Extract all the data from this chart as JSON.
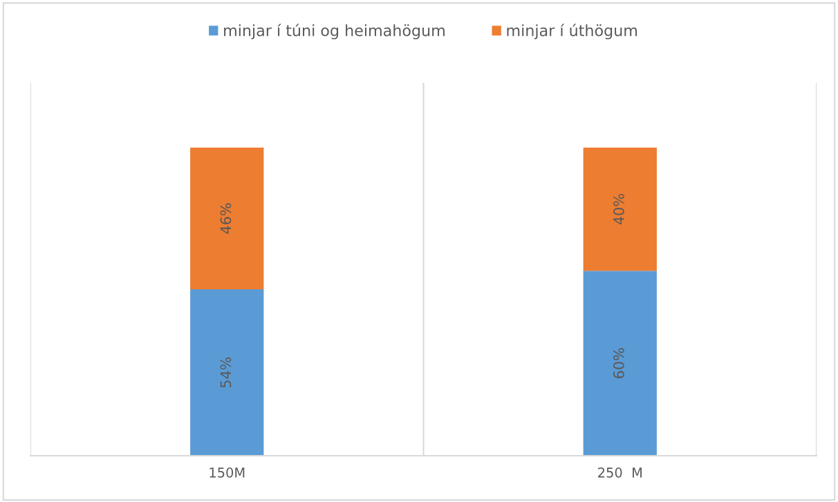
{
  "chart_data": {
    "type": "bar",
    "stacked": true,
    "categories": [
      "150M",
      "250  M"
    ],
    "series": [
      {
        "name": "minjar í túni og heimahögum",
        "color": "#5b9bd5",
        "values": [
          54,
          60
        ],
        "value_labels": [
          "54%",
          "60%"
        ]
      },
      {
        "name": "minjar í úthögum",
        "color": "#ed7d31",
        "values": [
          46,
          40
        ],
        "value_labels": [
          "46%",
          "40%"
        ]
      }
    ],
    "ylim": [
      0,
      121
    ],
    "legend": "top",
    "tick_labels": "x"
  }
}
